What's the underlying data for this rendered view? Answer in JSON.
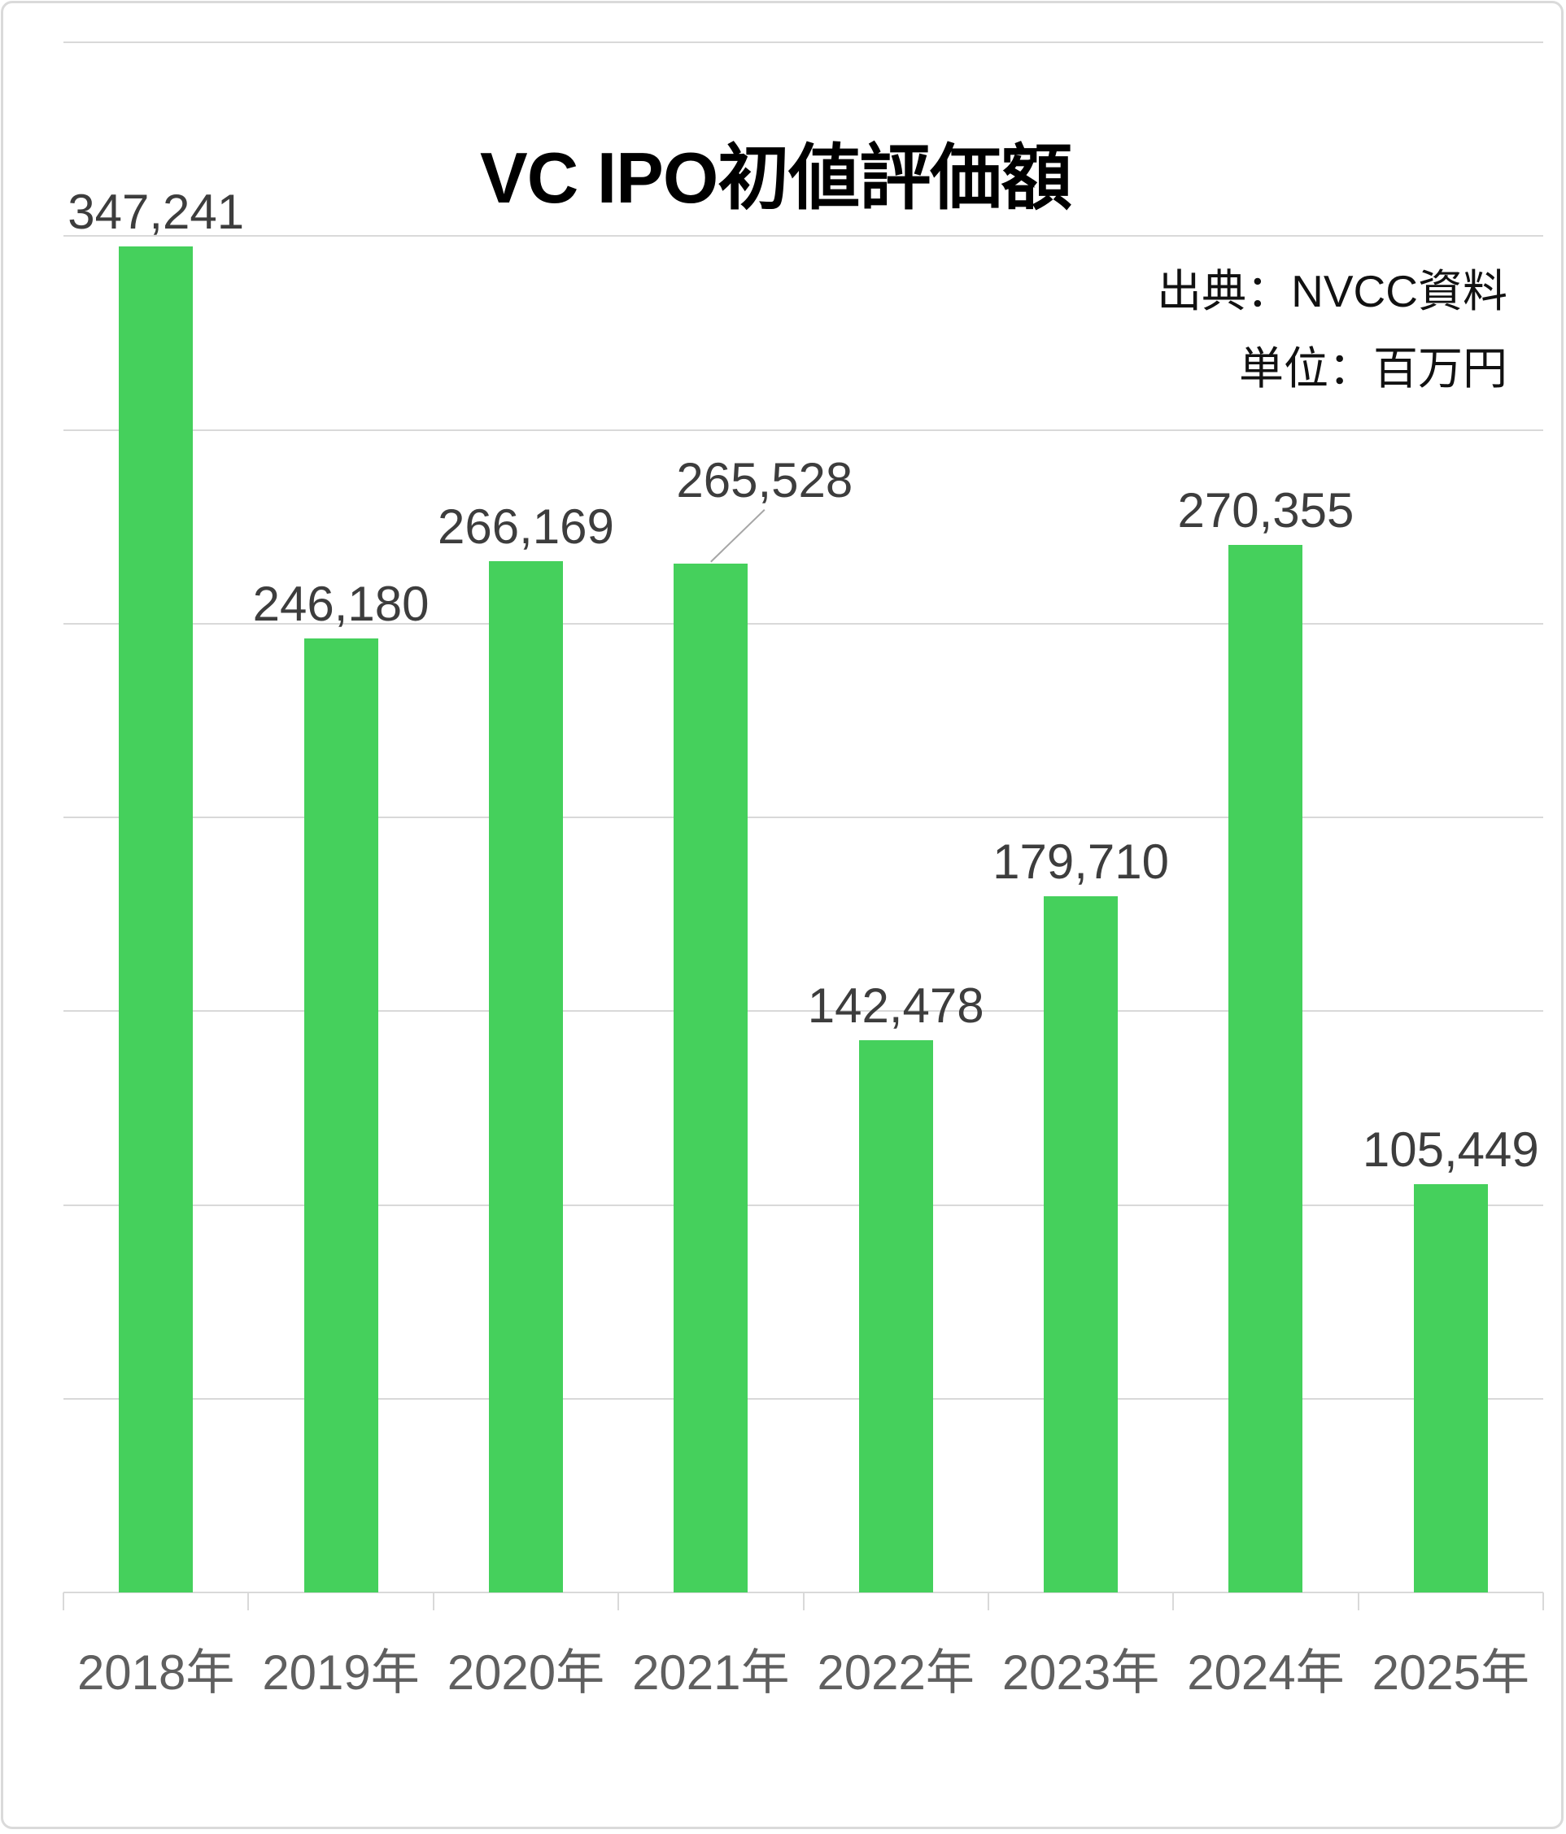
{
  "title": "VC IPO初値評価額",
  "header": {
    "source_note": "出典：NVCC資料",
    "unit_note": "単位：百万円"
  },
  "colors": {
    "bar": "#45d05c",
    "grid": "#d9d9d9",
    "card_border": "#dadada",
    "value_label": "#3d3d3d",
    "axis_label": "#5f5f5f",
    "title": "#000000",
    "note": "#111111",
    "leader_line": "#a6a6a6"
  },
  "chart_data": {
    "type": "bar",
    "title": "VC IPO初値評価額",
    "categories": [
      "2018年",
      "2019年",
      "2020年",
      "2021年",
      "2022年",
      "2023年",
      "2024年",
      "2025年"
    ],
    "values": [
      347241,
      246180,
      266169,
      265528,
      142478,
      179710,
      270355,
      105449
    ],
    "value_labels": [
      "347,241",
      "246,180",
      "266,169",
      "265,528",
      "142,478",
      "179,710",
      "270,355",
      "105,449"
    ],
    "unit": "百万円",
    "source": "NVCC資料",
    "ylim": [
      0,
      400000
    ],
    "gridline_interval": 50000,
    "grid": "horizontal",
    "legend": false,
    "annotation": {
      "category": "2021年",
      "index": 3,
      "value_label": "265,528",
      "note": "data label shifted up-right of bar with gray leader line to bar top"
    }
  }
}
